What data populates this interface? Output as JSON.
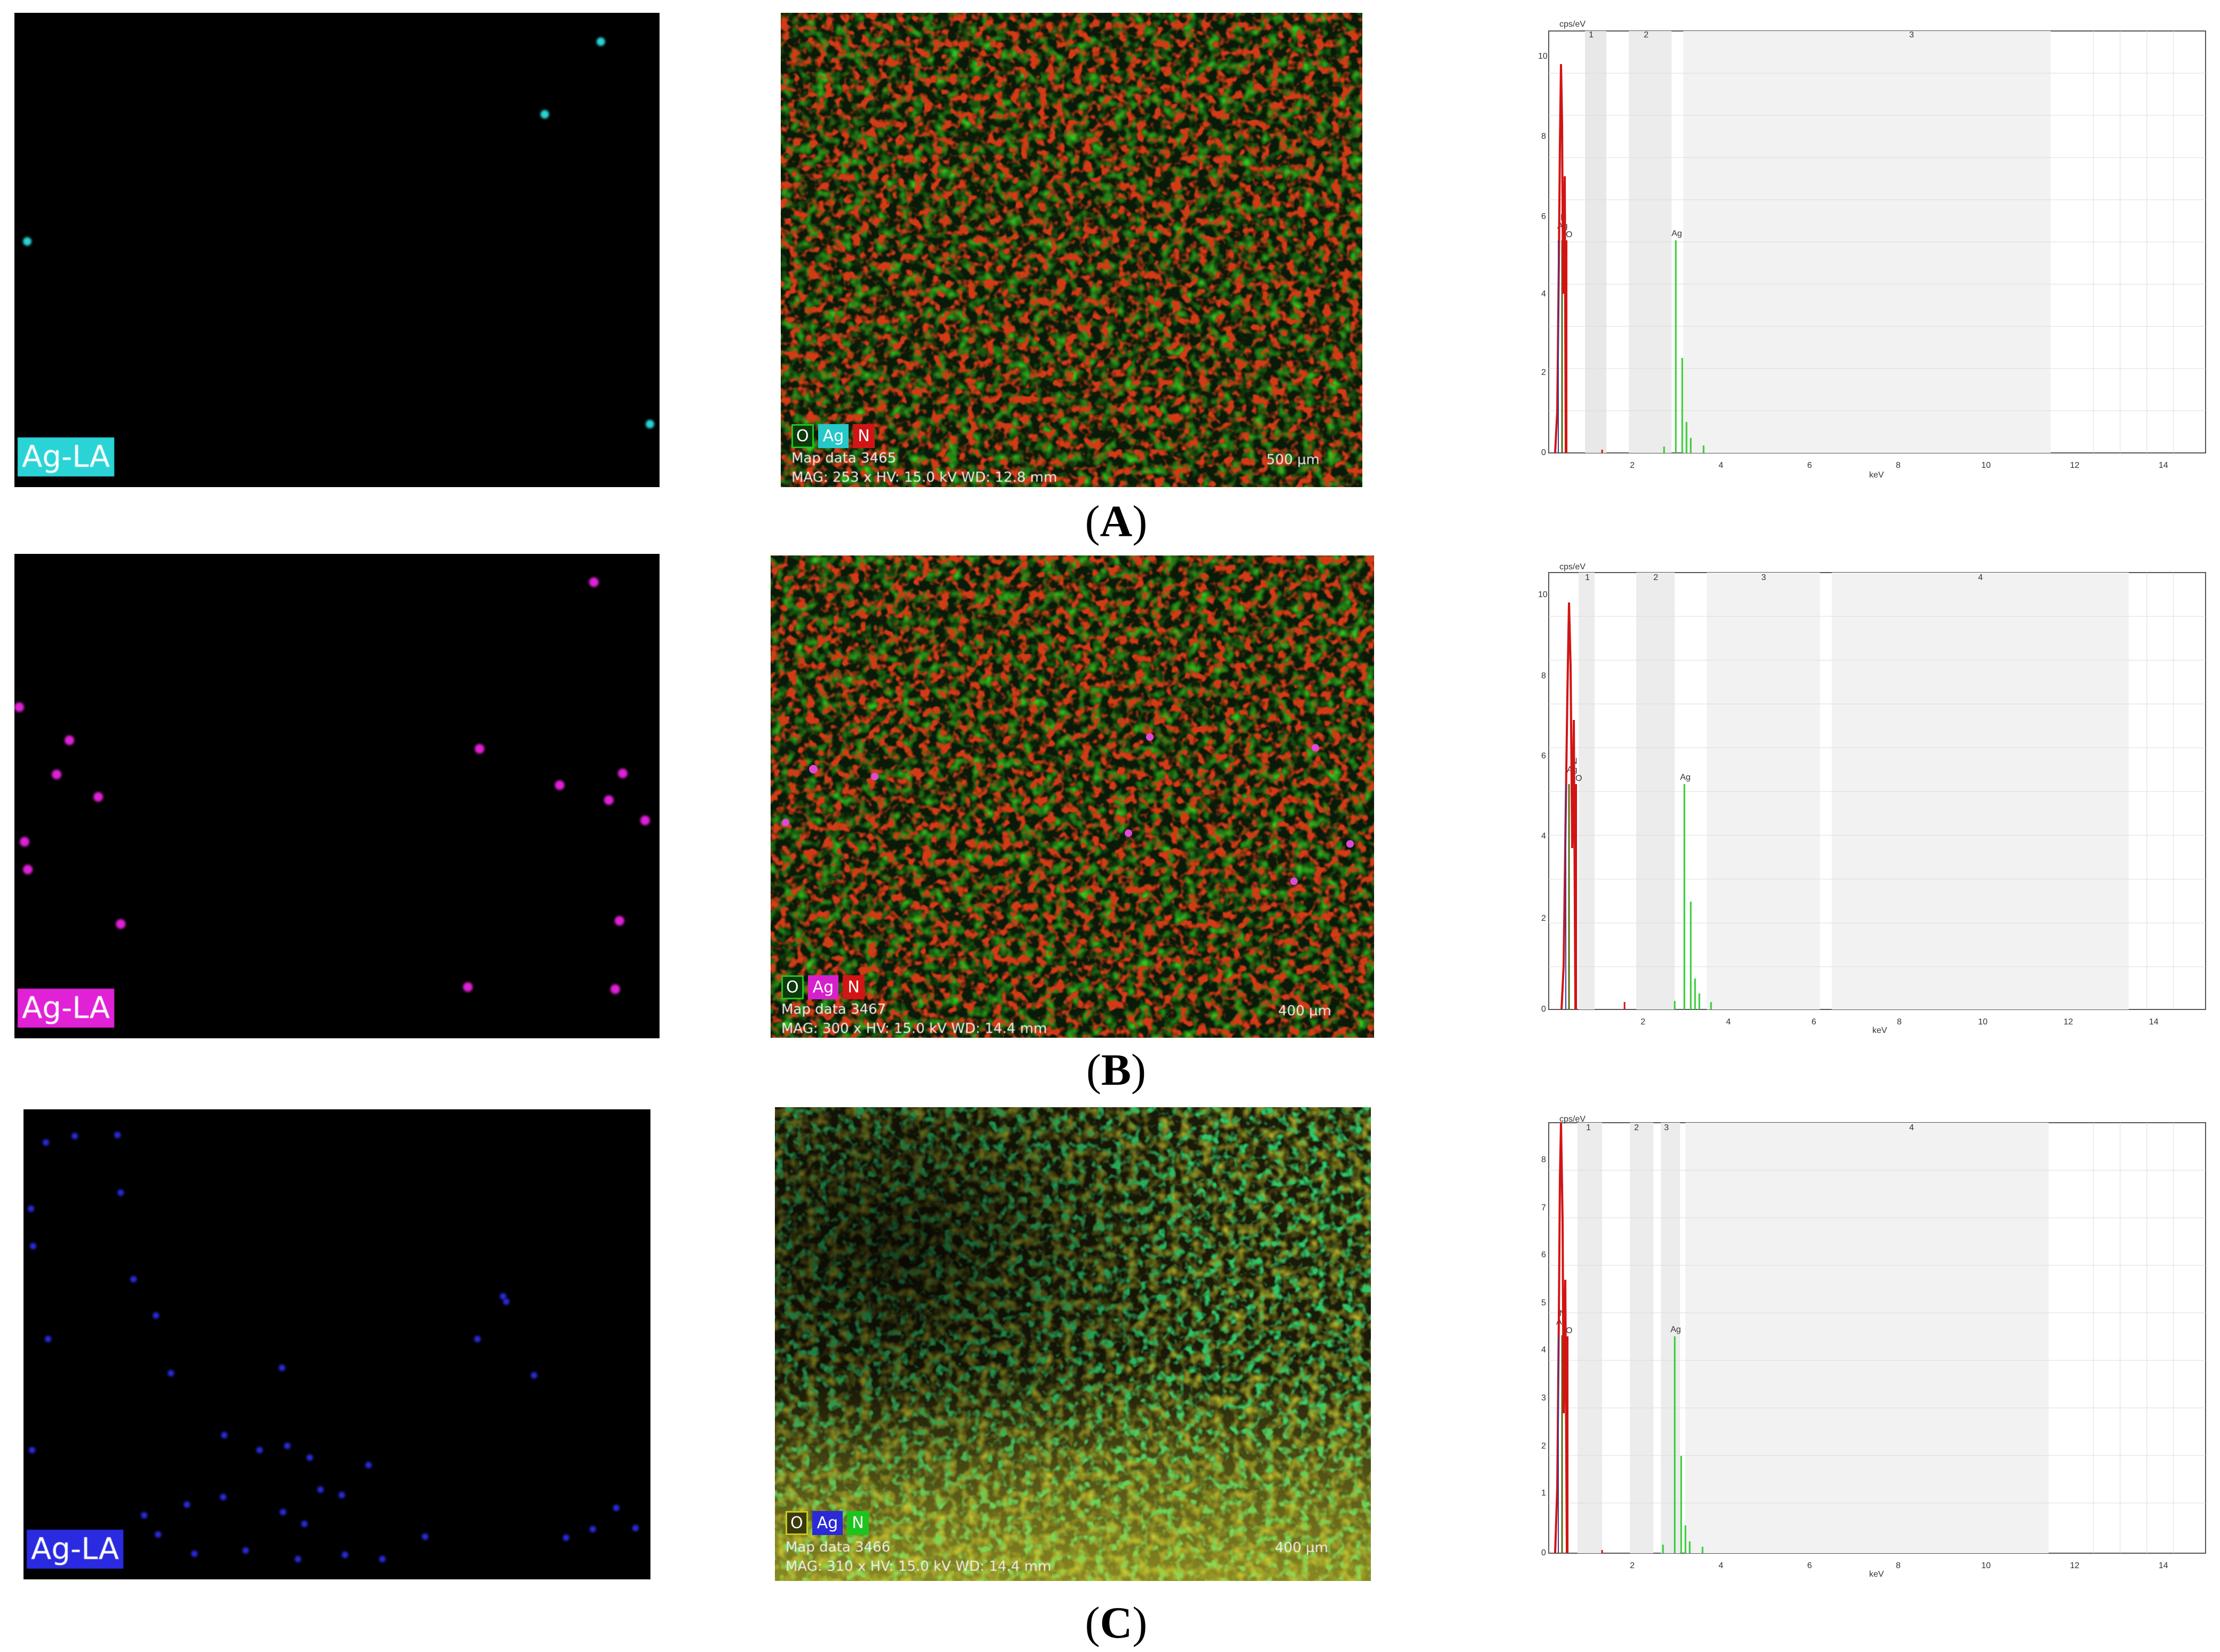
{
  "rows": [
    {
      "id": "A",
      "caption": "A",
      "map_label": "Ag-LA",
      "map_color": "#2ad4d6",
      "layered": {
        "legend": [
          "O",
          "Ag",
          "N"
        ],
        "legend_colors": [
          "#1ec41e",
          "#26c8c8",
          "#d21414"
        ],
        "info_line1": "Map data 3465",
        "info_line2": "MAG: 253 x  HV: 15.0 kV  WD: 12.8 mm",
        "scale": "500 µm"
      },
      "spectrum": {
        "ylabel": "cps/eV",
        "xlabel": "keV",
        "y_ticks": [
          "10",
          "8",
          "6",
          "4",
          "2",
          "0"
        ],
        "x_ticks": [
          "2",
          "4",
          "6",
          "8",
          "10",
          "12",
          "14"
        ],
        "regions": [
          "1",
          "2",
          "3"
        ],
        "peak_labels": [
          "N",
          "Ag",
          "O",
          "Ag"
        ]
      }
    },
    {
      "id": "B",
      "caption": "B",
      "map_label": "Ag-LA",
      "map_color": "#e021d6",
      "layered": {
        "legend": [
          "O",
          "Ag",
          "N"
        ],
        "legend_colors": [
          "#1ec41e",
          "#d620cc",
          "#d21414"
        ],
        "info_line1": "Map data 3467",
        "info_line2": "MAG: 300 x  HV: 15.0 kV  WD: 14.4 mm",
        "scale": "400 µm"
      },
      "spectrum": {
        "ylabel": "cps/eV",
        "xlabel": "keV",
        "y_ticks": [
          "10",
          "8",
          "6",
          "4",
          "2",
          "0"
        ],
        "x_ticks": [
          "2",
          "4",
          "6",
          "8",
          "10",
          "12",
          "14"
        ],
        "regions": [
          "1",
          "2",
          "3",
          "4"
        ],
        "peak_labels": [
          "N",
          "Ag",
          "O",
          "Ag"
        ]
      }
    },
    {
      "id": "C",
      "caption": "C",
      "map_label": "Ag-LA",
      "map_color": "#2a2ae0",
      "layered": {
        "legend": [
          "O",
          "Ag",
          "N"
        ],
        "legend_colors": [
          "#c8c81e",
          "#2a2ad6",
          "#1ec41e"
        ],
        "info_line1": "Map data 3466",
        "info_line2": "MAG: 310 x  HV: 15.0 kV  WD: 14.4 mm",
        "scale": "400 µm"
      },
      "spectrum": {
        "ylabel": "cps/eV",
        "xlabel": "keV",
        "y_ticks": [
          "8",
          "7",
          "6",
          "5",
          "4",
          "3",
          "2",
          "1",
          "0"
        ],
        "x_ticks": [
          "2",
          "4",
          "6",
          "8",
          "10",
          "12",
          "14"
        ],
        "regions": [
          "1",
          "2",
          "3",
          "4"
        ],
        "peak_labels": [
          "N",
          "Ag",
          "O",
          "Ag"
        ]
      }
    }
  ]
}
